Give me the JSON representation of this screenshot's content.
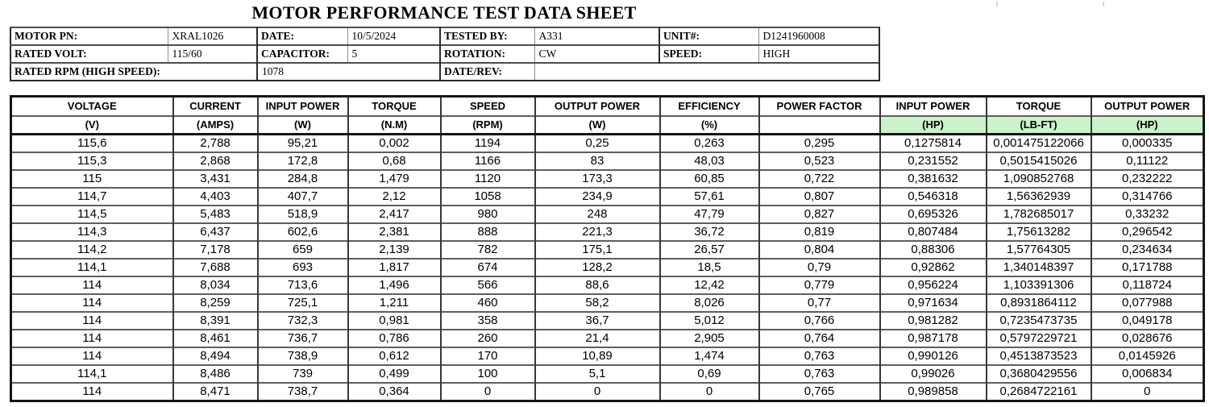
{
  "title": "MOTOR PERFORMANCE TEST DATA SHEET",
  "info": {
    "rows": [
      [
        {
          "text": "MOTOR PN:",
          "bold": true
        },
        {
          "text": "XRAL1026"
        },
        {
          "text": "DATE:",
          "bold": true
        },
        {
          "text": "10/5/2024"
        },
        {
          "text": "TESTED BY:",
          "bold": true
        },
        {
          "text": "A331"
        },
        {
          "text": "UNIT#:",
          "bold": true
        },
        {
          "text": "D1241960008"
        }
      ],
      [
        {
          "text": "RATED VOLT:",
          "bold": true
        },
        {
          "text": "115/60"
        },
        {
          "text": "CAPACITOR:",
          "bold": true
        },
        {
          "text": "5"
        },
        {
          "text": "ROTATION:",
          "bold": true
        },
        {
          "text": "CW"
        },
        {
          "text": "SPEED:",
          "bold": true
        },
        {
          "text": "HIGH"
        }
      ],
      [
        {
          "text": "RATED RPM (HIGH SPEED):",
          "bold": true,
          "colspan": 2
        },
        {
          "text": "1078",
          "colspan": 2
        },
        {
          "text": "DATE/REV:",
          "bold": true
        },
        {
          "text": "",
          "colspan": 3
        }
      ]
    ]
  },
  "table": {
    "highlight_color": "#ccf2cc",
    "columns": [
      {
        "name": "VOLTAGE",
        "unit": "(V)"
      },
      {
        "name": "CURRENT",
        "unit": "(AMPS)"
      },
      {
        "name": "INPUT POWER",
        "unit": "(W)"
      },
      {
        "name": "TORQUE",
        "unit": "(N.M)"
      },
      {
        "name": "SPEED",
        "unit": "(RPM)"
      },
      {
        "name": "OUTPUT POWER",
        "unit": "(W)"
      },
      {
        "name": "EFFICIENCY",
        "unit": "(%)"
      },
      {
        "name": "POWER FACTOR",
        "unit": ""
      },
      {
        "name": "INPUT POWER",
        "unit": "(HP)",
        "highlight": true
      },
      {
        "name": "TORQUE",
        "unit": "(LB-FT)",
        "highlight": true
      },
      {
        "name": "OUTPUT POWER",
        "unit": "(HP)",
        "highlight": true
      }
    ],
    "rows": [
      [
        "115,6",
        "2,788",
        "95,21",
        "0,002",
        "1194",
        "0,25",
        "0,263",
        "0,295",
        "0,1275814",
        "0,001475122066",
        "0,000335"
      ],
      [
        "115,3",
        "2,868",
        "172,8",
        "0,68",
        "1166",
        "83",
        "48,03",
        "0,523",
        "0,231552",
        "0,5015415026",
        "0,11122"
      ],
      [
        "115",
        "3,431",
        "284,8",
        "1,479",
        "1120",
        "173,3",
        "60,85",
        "0,722",
        "0,381632",
        "1,090852768",
        "0,232222"
      ],
      [
        "114,7",
        "4,403",
        "407,7",
        "2,12",
        "1058",
        "234,9",
        "57,61",
        "0,807",
        "0,546318",
        "1,56362939",
        "0,314766"
      ],
      [
        "114,5",
        "5,483",
        "518,9",
        "2,417",
        "980",
        "248",
        "47,79",
        "0,827",
        "0,695326",
        "1,782685017",
        "0,33232"
      ],
      [
        "114,3",
        "6,437",
        "602,6",
        "2,381",
        "888",
        "221,3",
        "36,72",
        "0,819",
        "0,807484",
        "1,75613282",
        "0,296542"
      ],
      [
        "114,2",
        "7,178",
        "659",
        "2,139",
        "782",
        "175,1",
        "26,57",
        "0,804",
        "0,88306",
        "1,57764305",
        "0,234634"
      ],
      [
        "114,1",
        "7,688",
        "693",
        "1,817",
        "674",
        "128,2",
        "18,5",
        "0,79",
        "0,92862",
        "1,340148397",
        "0,171788"
      ],
      [
        "114",
        "8,034",
        "713,6",
        "1,496",
        "566",
        "88,6",
        "12,42",
        "0,779",
        "0,956224",
        "1,103391306",
        "0,118724"
      ],
      [
        "114",
        "8,259",
        "725,1",
        "1,211",
        "460",
        "58,2",
        "8,026",
        "0,77",
        "0,971634",
        "0,8931864112",
        "0,077988"
      ],
      [
        "114",
        "8,391",
        "732,3",
        "0,981",
        "358",
        "36,7",
        "5,012",
        "0,766",
        "0,981282",
        "0,7235473735",
        "0,049178"
      ],
      [
        "114",
        "8,461",
        "736,7",
        "0,786",
        "260",
        "21,4",
        "2,905",
        "0,764",
        "0,987178",
        "0,5797229721",
        "0,028676"
      ],
      [
        "114",
        "8,494",
        "738,9",
        "0,612",
        "170",
        "10,89",
        "1,474",
        "0,763",
        "0,990126",
        "0,4513873523",
        "0,0145926"
      ],
      [
        "114,1",
        "8,486",
        "739",
        "0,499",
        "100",
        "5,1",
        "0,69",
        "0,763",
        "0,99026",
        "0,3680429556",
        "0,006834"
      ],
      [
        "114",
        "8,471",
        "738,7",
        "0,364",
        "0",
        "0",
        "0",
        "0,765",
        "0,989858",
        "0,2684722161",
        "0"
      ]
    ]
  }
}
